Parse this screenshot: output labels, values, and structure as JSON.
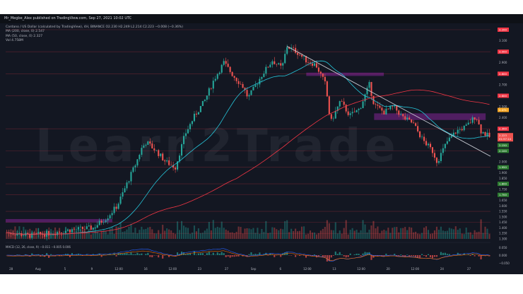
{
  "header": {
    "text": "Mr_Megbe_Alex published on TradingView.com, Sep 27, 2021 10:02 UTC"
  },
  "info": {
    "line1": "Cardano / US Dollar (calculated by TradingView), 4H, BINANCE  O2.230  H2.249  L2.214  C2.223  −0.008 (−0.36%)",
    "line2": "MA (200, close, 0)  2.547",
    "line3": "MA (50, close, 0)  2.327",
    "line4": "Vol  4.758M"
  },
  "watermark": "Learn2Trade",
  "macd_label": "MACD (12, 26, close, 9)  −0.011  −0.005  0.006",
  "footer": {
    "brand": "TradingView"
  },
  "colors": {
    "background": "#131722",
    "bull": "#26a69a",
    "bear": "#ef5350",
    "ma50": "#26c6da",
    "ma200": "#f23645",
    "resistance_zone": "#9c27b0",
    "level_tag": "#f23645",
    "support_tag": "#2e7d32"
  },
  "chart_data": {
    "type": "candlestick",
    "symbol": "ADA/USD",
    "timeframe": "4H",
    "ylim": [
      1.3,
      3.2
    ],
    "y_ticks": [
      "3.200",
      "3.100",
      "3.000",
      "2.900",
      "2.800",
      "2.700",
      "2.600",
      "2.500",
      "2.400",
      "2.300",
      "2.200",
      "2.100",
      "2.000",
      "1.950",
      "1.900",
      "1.850",
      "1.800",
      "1.750",
      "1.700",
      "1.650",
      "1.600",
      "1.550",
      "1.500",
      "1.450",
      "1.400",
      "1.350",
      "1.300"
    ],
    "x_ticks": [
      "28",
      "Aug",
      "5",
      "9",
      "12:00",
      "16",
      "12:00",
      "23",
      "27",
      "Sep",
      "6",
      "12:00",
      "13",
      "12:00",
      "20",
      "12:00",
      "24",
      "27"
    ],
    "current_price": 2.223,
    "current_price_label": "2.223",
    "countdown_label": "01:57:14",
    "level_tags": [
      {
        "label": "3.200",
        "y": 3.2,
        "kind": "resistance"
      },
      {
        "label": "3.000",
        "y": 3.0,
        "kind": "resistance"
      },
      {
        "label": "2.800",
        "y": 2.8,
        "kind": "resistance"
      },
      {
        "label": "2.600",
        "y": 2.6,
        "kind": "resistance"
      },
      {
        "label": "2.471",
        "y": 2.471,
        "kind": "highlight"
      },
      {
        "label": "2.300",
        "y": 2.3,
        "kind": "resistance"
      },
      {
        "label": "2.150",
        "y": 2.15,
        "kind": "support"
      },
      {
        "label": "2.100",
        "y": 2.1,
        "kind": "support"
      },
      {
        "label": "1.950",
        "y": 1.95,
        "kind": "support"
      },
      {
        "label": "1.800",
        "y": 1.8,
        "kind": "support"
      },
      {
        "label": "1.700",
        "y": 1.7,
        "kind": "support"
      }
    ],
    "horizontal_levels": [
      3.2,
      3.0,
      2.8,
      2.6,
      2.3,
      2.1,
      1.95,
      1.8,
      1.7,
      1.55,
      1.45,
      1.35
    ],
    "zones": [
      {
        "y0": 2.78,
        "y1": 2.81,
        "from": 0.62,
        "to": 0.78
      },
      {
        "y0": 2.38,
        "y1": 2.44,
        "from": 0.76,
        "to": 0.99
      },
      {
        "y0": 1.45,
        "y1": 1.48,
        "from": 0.0,
        "to": 0.22
      }
    ],
    "trendline": {
      "from": [
        0.58,
        3.05
      ],
      "to": [
        1.0,
        2.05
      ]
    },
    "macd_ticks": [
      "0.050",
      "0.000",
      "−0.050"
    ],
    "key_points": [
      [
        0.0,
        1.36
      ],
      [
        0.05,
        1.33
      ],
      [
        0.09,
        1.35
      ],
      [
        0.13,
        1.38
      ],
      [
        0.18,
        1.4
      ],
      [
        0.21,
        1.5
      ],
      [
        0.23,
        1.6
      ],
      [
        0.25,
        1.8
      ],
      [
        0.27,
        2.0
      ],
      [
        0.28,
        2.12
      ],
      [
        0.29,
        2.18
      ],
      [
        0.31,
        2.1
      ],
      [
        0.33,
        2.0
      ],
      [
        0.35,
        1.95
      ],
      [
        0.37,
        2.25
      ],
      [
        0.39,
        2.42
      ],
      [
        0.41,
        2.55
      ],
      [
        0.43,
        2.75
      ],
      [
        0.45,
        2.9
      ],
      [
        0.47,
        2.78
      ],
      [
        0.49,
        2.68
      ],
      [
        0.5,
        2.58
      ],
      [
        0.51,
        2.65
      ],
      [
        0.53,
        2.8
      ],
      [
        0.55,
        2.92
      ],
      [
        0.57,
        2.85
      ],
      [
        0.58,
        3.05
      ],
      [
        0.6,
        3.0
      ],
      [
        0.62,
        2.92
      ],
      [
        0.64,
        2.88
      ],
      [
        0.66,
        2.7
      ],
      [
        0.67,
        2.35
      ],
      [
        0.69,
        2.55
      ],
      [
        0.71,
        2.42
      ],
      [
        0.73,
        2.48
      ],
      [
        0.75,
        2.7
      ],
      [
        0.76,
        2.52
      ],
      [
        0.78,
        2.45
      ],
      [
        0.8,
        2.5
      ],
      [
        0.82,
        2.4
      ],
      [
        0.84,
        2.35
      ],
      [
        0.86,
        2.2
      ],
      [
        0.88,
        2.1
      ],
      [
        0.89,
        2.0
      ],
      [
        0.91,
        2.18
      ],
      [
        0.93,
        2.28
      ],
      [
        0.95,
        2.32
      ],
      [
        0.97,
        2.42
      ],
      [
        0.98,
        2.28
      ],
      [
        1.0,
        2.22
      ]
    ]
  }
}
